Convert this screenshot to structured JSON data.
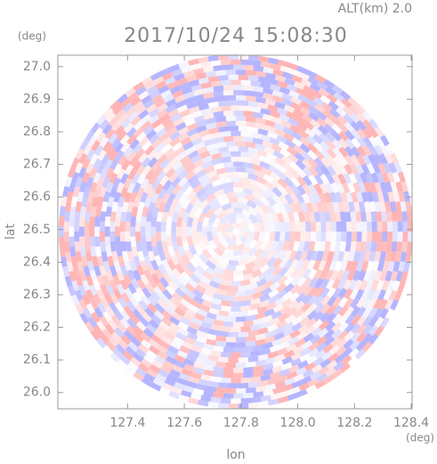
{
  "chart_data": {
    "type": "radar-ppi",
    "title": "2017/10/24 15:08:30",
    "subtitle": "ALT(km) 2.0",
    "y_unit": "(deg)",
    "x_unit": "(deg)",
    "ylabel": "lat",
    "xlabel": "lon",
    "xlim": [
      127.154,
      128.403
    ],
    "ylim": [
      25.95,
      27.035
    ],
    "xticks": [
      {
        "value": 127.4,
        "label": "127.4"
      },
      {
        "value": 127.6,
        "label": "127.6"
      },
      {
        "value": 127.8,
        "label": "127.8"
      },
      {
        "value": 128.0,
        "label": "128.0"
      },
      {
        "value": 128.2,
        "label": "128.2"
      },
      {
        "value": 128.4,
        "label": "128.4"
      }
    ],
    "yticks": [
      {
        "value": 26.0,
        "label": "26.0"
      },
      {
        "value": 26.1,
        "label": "26.1"
      },
      {
        "value": 26.2,
        "label": "26.2"
      },
      {
        "value": 26.3,
        "label": "26.3"
      },
      {
        "value": 26.4,
        "label": "26.4"
      },
      {
        "value": 26.5,
        "label": "26.5"
      },
      {
        "value": 26.6,
        "label": "26.6"
      },
      {
        "value": 26.7,
        "label": "26.7"
      },
      {
        "value": 26.8,
        "label": "26.8"
      },
      {
        "value": 26.9,
        "label": "26.9"
      },
      {
        "value": 27.0,
        "label": "27.0"
      }
    ]
  }
}
